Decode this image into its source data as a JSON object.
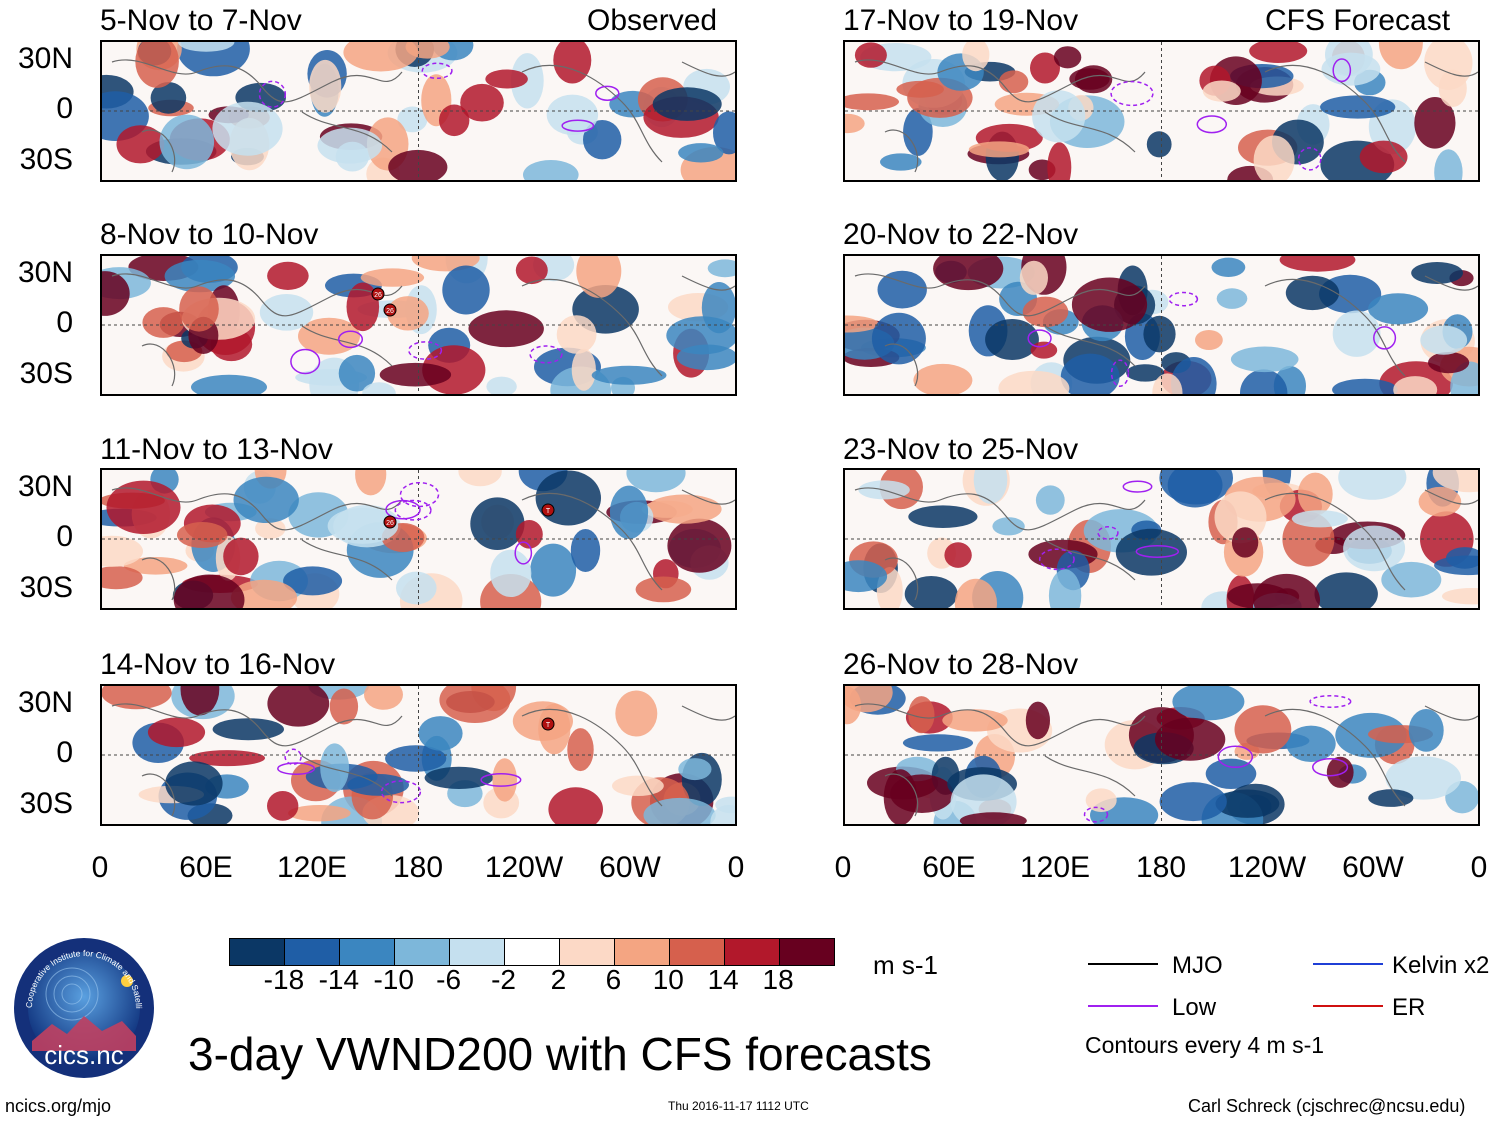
{
  "title": "3-day VWND200 with CFS forecasts",
  "chart_data": {
    "type": "heatmap",
    "variable": "VWND200",
    "units": "m s-1",
    "columns": [
      {
        "header": "Observed",
        "periods": [
          "5-Nov to 7-Nov",
          "8-Nov to 10-Nov",
          "11-Nov to 13-Nov",
          "14-Nov to 16-Nov"
        ]
      },
      {
        "header": "CFS Forecast",
        "periods": [
          "17-Nov to 19-Nov",
          "20-Nov to 22-Nov",
          "23-Nov to 25-Nov",
          "26-Nov to 28-Nov"
        ]
      }
    ],
    "y_ticks": [
      "30N",
      "0",
      "30S"
    ],
    "x_ticks": [
      "0",
      "60E",
      "120E",
      "180",
      "120W",
      "60W",
      "0"
    ],
    "colorbar_labels": [
      "-18",
      "-14",
      "-10",
      "-6",
      "-2",
      "2",
      "6",
      "10",
      "14",
      "18"
    ],
    "colorbar_colors": [
      "#0b3765",
      "#1f5ea6",
      "#3b86c0",
      "#7db7da",
      "#c5e0ef",
      "#ffffff",
      "#fcd9c6",
      "#f4a582",
      "#d6604d",
      "#b2182b",
      "#67001f"
    ],
    "legend": [
      {
        "label": "MJO",
        "color": "#000000"
      },
      {
        "label": "Kelvin x2",
        "color": "#1f3fd6"
      },
      {
        "label": "Low",
        "color": "#a020f0"
      },
      {
        "label": "ER",
        "color": "#d01010"
      }
    ],
    "contour_note": "Contours every 4 m s-1"
  },
  "storm_markers": [
    {
      "panel": 1,
      "label": "26"
    },
    {
      "panel": 1,
      "label": "26"
    },
    {
      "panel": 2,
      "label": "26"
    },
    {
      "panel": 2,
      "label": "T"
    },
    {
      "panel": 3,
      "label": "T"
    }
  ],
  "logo": {
    "text": "cics.nc",
    "ring_text": "Cooperative Institute for Climate and Satellites"
  },
  "footer": {
    "left": "ncics.org/mjo",
    "center": "Thu 2016-11-17 1112 UTC",
    "right": "Carl Schreck (cjschrec@ncsu.edu)"
  }
}
